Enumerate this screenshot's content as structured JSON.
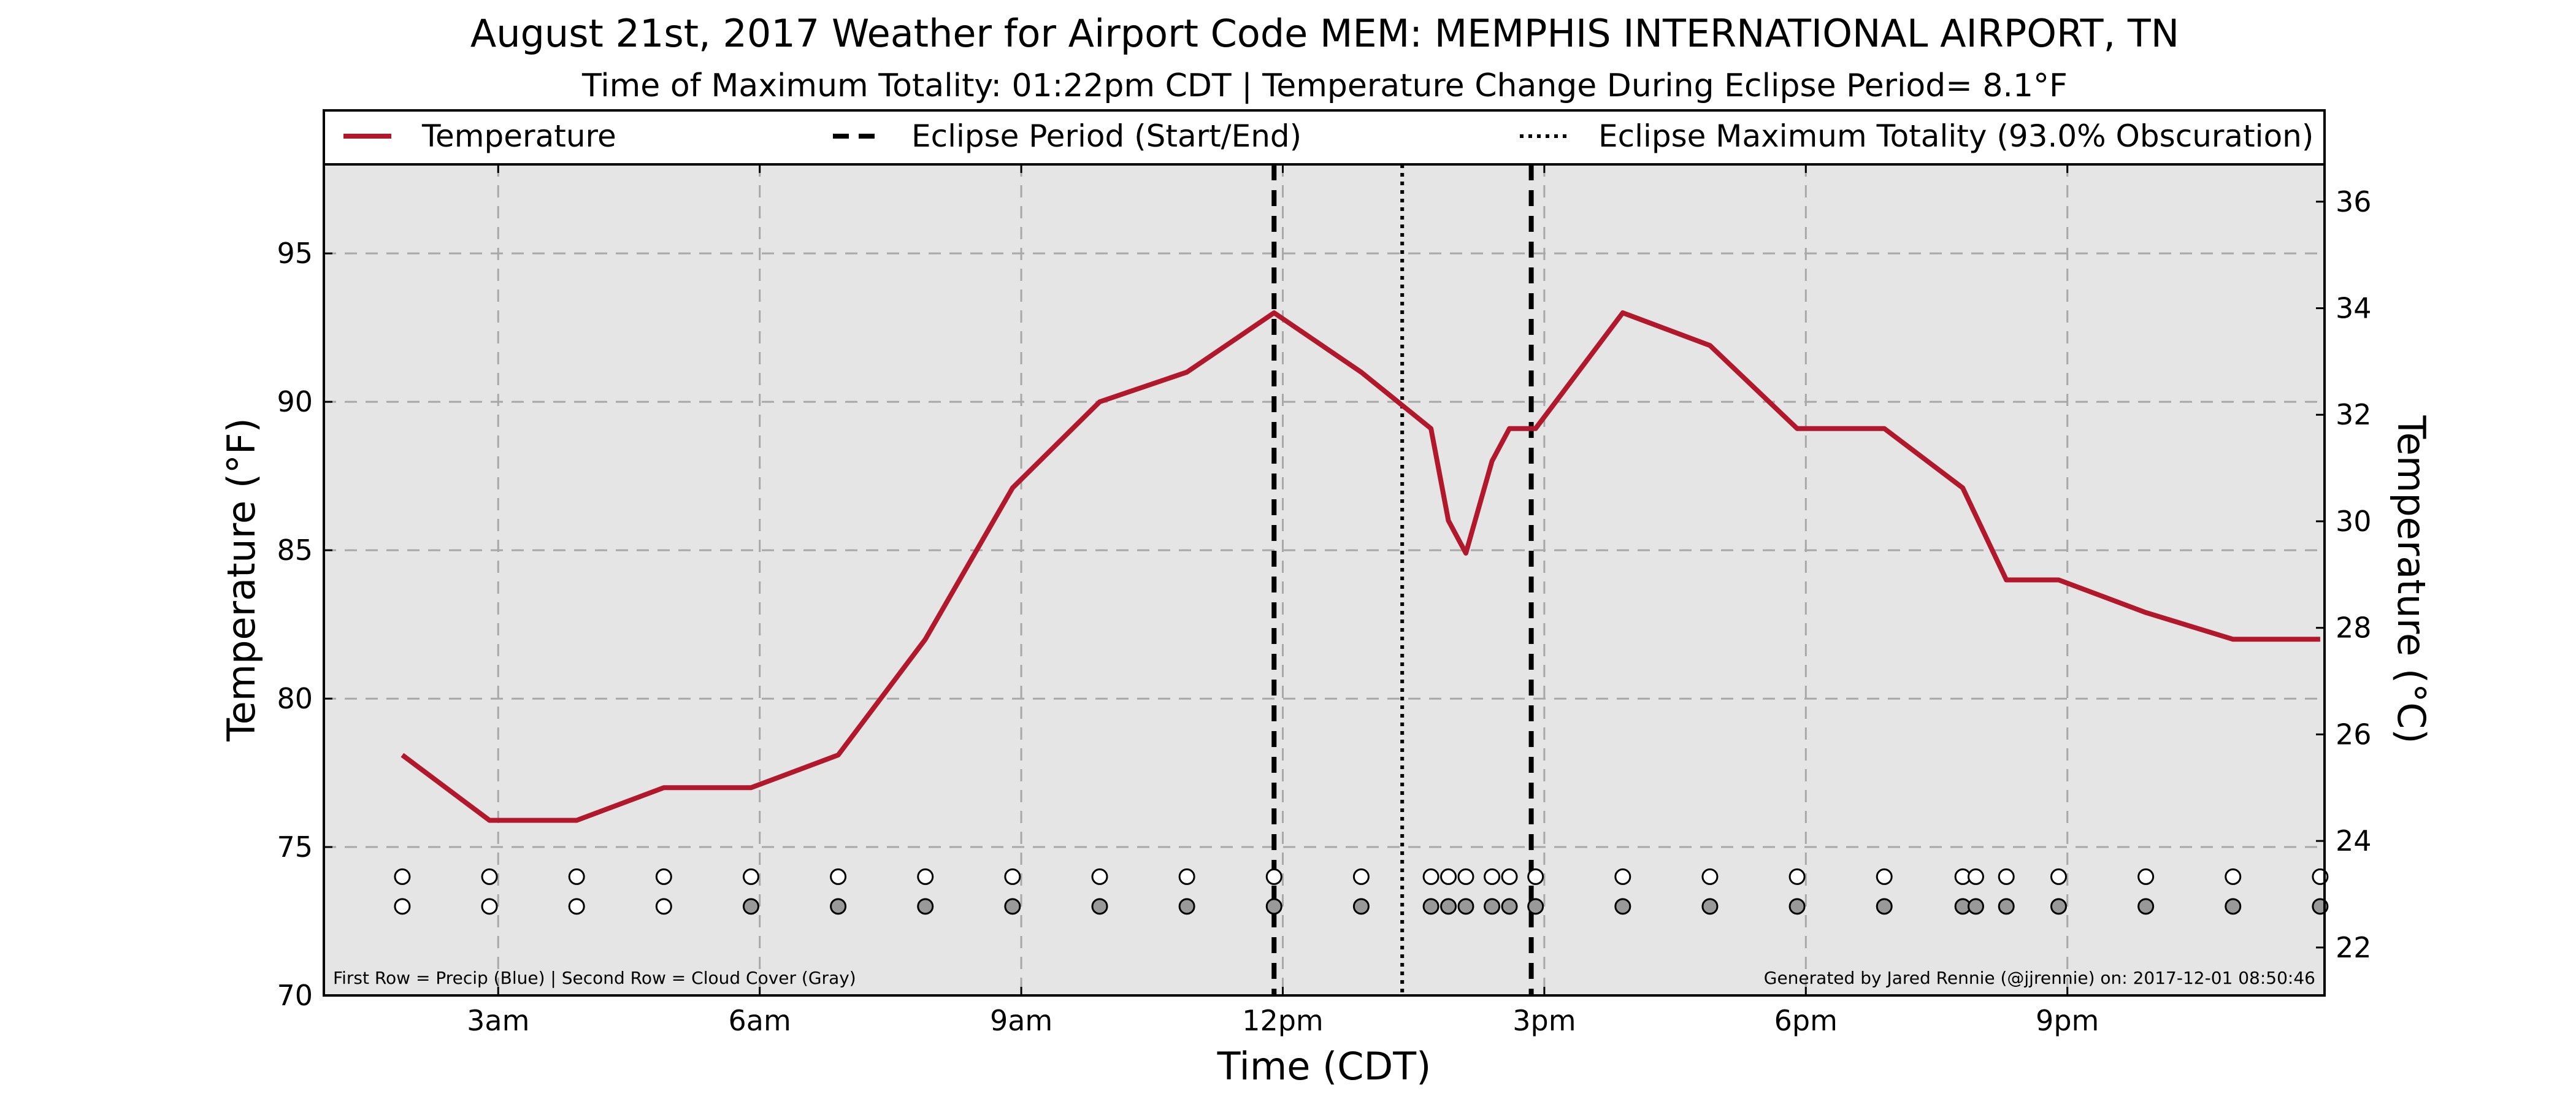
{
  "chart_data": {
    "type": "line",
    "title": "August 21st, 2017 Weather for Airport Code MEM: MEMPHIS INTERNATIONAL AIRPORT, TN",
    "subtitle": "Time of Maximum Totality: 01:22pm CDT | Temperature Change During Eclipse Period= 8.1°F",
    "xlabel": "Time (CDT)",
    "ylabel": "Temperature (°F)",
    "y2label": "Temperature (°C)",
    "xlim": [
      1.0,
      23.95
    ],
    "ylim": [
      70,
      98
    ],
    "y2lim": [
      21.1,
      36.7
    ],
    "x_ticks": [
      {
        "x": 3,
        "label": "3am"
      },
      {
        "x": 6,
        "label": "6am"
      },
      {
        "x": 9,
        "label": "9am"
      },
      {
        "x": 12,
        "label": "12pm"
      },
      {
        "x": 15,
        "label": "3pm"
      },
      {
        "x": 18,
        "label": "6pm"
      },
      {
        "x": 21,
        "label": "9pm"
      }
    ],
    "y_ticks": [
      70,
      75,
      80,
      85,
      90,
      95
    ],
    "y2_ticks": [
      22,
      24,
      26,
      28,
      30,
      32,
      34,
      36
    ],
    "grid": true,
    "legend_position": "top",
    "legend": {
      "temperature": "Temperature",
      "eclipse_period": "Eclipse Period (Start/End)",
      "max_totality": "Eclipse Maximum Totality (93.0% Obscuration)"
    },
    "series": [
      {
        "name": "Temperature",
        "color": "#b2182b",
        "x": [
          1.9,
          2.9,
          3.9,
          4.9,
          5.9,
          6.9,
          7.9,
          8.9,
          9.9,
          10.9,
          11.9,
          12.9,
          13.7,
          13.9,
          14.1,
          14.4,
          14.6,
          14.9,
          15.9,
          16.9,
          17.9,
          18.9,
          19.8,
          20.3,
          20.9,
          21.9,
          22.9,
          23.9
        ],
        "y": [
          78.1,
          75.9,
          75.9,
          77.0,
          77.0,
          78.1,
          82.0,
          87.1,
          90.0,
          91.0,
          93.0,
          91.0,
          89.1,
          86.0,
          84.9,
          88.0,
          89.1,
          89.1,
          93.0,
          91.9,
          89.1,
          89.1,
          87.1,
          84.0,
          84.0,
          82.9,
          82.0,
          82.0
        ]
      }
    ],
    "eclipse_start": 11.9,
    "eclipse_end": 14.85,
    "max_totality": 13.37,
    "obs_times": [
      1.9,
      2.9,
      3.9,
      4.9,
      5.9,
      6.9,
      7.9,
      8.9,
      9.9,
      10.9,
      11.9,
      12.9,
      13.7,
      13.9,
      14.1,
      14.4,
      14.6,
      14.9,
      15.9,
      16.9,
      17.9,
      18.9,
      19.8,
      19.95,
      20.3,
      20.9,
      21.9,
      22.9,
      23.9
    ],
    "precip_row_y": 74,
    "cloud_row_y": 73,
    "precip_fill": [
      "#ffffff",
      "#ffffff",
      "#ffffff",
      "#ffffff",
      "#ffffff",
      "#ffffff",
      "#ffffff",
      "#ffffff",
      "#ffffff",
      "#ffffff",
      "#ffffff",
      "#ffffff",
      "#ffffff",
      "#ffffff",
      "#ffffff",
      "#ffffff",
      "#ffffff",
      "#ffffff",
      "#ffffff",
      "#ffffff",
      "#ffffff",
      "#ffffff",
      "#ffffff",
      "#ffffff",
      "#ffffff",
      "#ffffff",
      "#ffffff",
      "#ffffff",
      "#ffffff"
    ],
    "cloud_fill": [
      "#ffffff",
      "#ffffff",
      "#ffffff",
      "#ffffff",
      "#999999",
      "#999999",
      "#999999",
      "#999999",
      "#999999",
      "#999999",
      "#999999",
      "#999999",
      "#999999",
      "#999999",
      "#999999",
      "#999999",
      "#999999",
      "#999999",
      "#999999",
      "#999999",
      "#999999",
      "#999999",
      "#999999",
      "#999999",
      "#999999",
      "#999999",
      "#999999",
      "#999999",
      "#999999"
    ],
    "footnote_left": "First Row = Precip (Blue) | Second Row = Cloud Cover (Gray)",
    "footnote_right": "Generated by Jared Rennie (@jjrennie) on: 2017-12-01 08:50:46"
  }
}
